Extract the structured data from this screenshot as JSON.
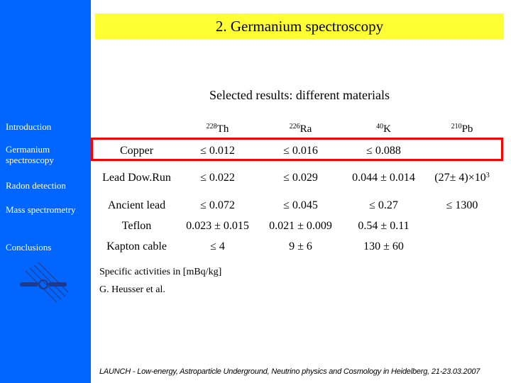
{
  "slide": {
    "title": "2. Germanium spectroscopy",
    "subtitle": "Selected results: different materials",
    "notes": {
      "units": "Specific activities in [mBq/kg]",
      "credit": "G. Heusser et al."
    },
    "footer": "LAUNCH - Low-energy, Astroparticle Underground, Neutrino physics and Cosmology in Heidelberg, 21-23.03.2007"
  },
  "sidebar": {
    "items": [
      {
        "label": "Introduction"
      },
      {
        "label": "Germanium spectroscopy"
      },
      {
        "label": "Radon detection"
      },
      {
        "label": "Mass spectrometry"
      },
      {
        "label": "Conclusions"
      }
    ]
  },
  "table": {
    "columns": [
      {
        "mass": "228",
        "element": "Th"
      },
      {
        "mass": "226",
        "element": "Ra"
      },
      {
        "mass": "40",
        "element": "K"
      },
      {
        "mass": "210",
        "element": "Pb"
      }
    ],
    "rows": [
      {
        "material": "Copper",
        "values": [
          "≤ 0.012",
          "≤ 0.016",
          "≤ 0.088",
          ""
        ],
        "highlighted": true
      },
      {
        "material": "Lead Dow.Run",
        "values": [
          "≤ 0.022",
          "≤ 0.029",
          "0.044 ± 0.014",
          "(27± 4)×10"
        ],
        "pb_exp": "3"
      },
      {
        "material": "Ancient lead",
        "values": [
          "≤ 0.072",
          "≤ 0.045",
          "≤ 0.27",
          "≤ 1300"
        ]
      },
      {
        "material": "Teflon",
        "values": [
          "0.023 ± 0.015",
          "0.021 ± 0.009",
          "0.54 ± 0.11",
          ""
        ]
      },
      {
        "material": "Kapton cable",
        "values": [
          "≤ 4",
          "9 ± 6",
          "130 ± 60",
          ""
        ]
      }
    ]
  },
  "colors": {
    "sidebar": "#0066ff",
    "title_bar": "#ffff33",
    "highlight_border": "#ff0000",
    "logo": "#1f3a8a"
  }
}
